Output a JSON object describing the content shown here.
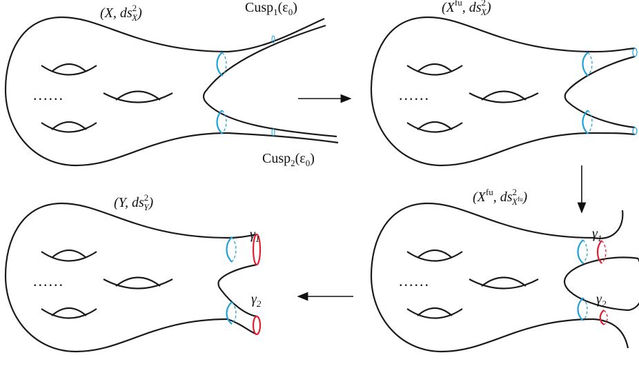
{
  "labels": [
    {
      "parts": [
        {
          "t": "(X, ds"
        },
        {
          "sup": "2"
        },
        {
          "sub": "X"
        },
        {
          "t": ")"
        }
      ]
    },
    {
      "parts": [
        {
          "t": "Cusp"
        },
        {
          "sub": "1"
        },
        {
          "t": "(ε"
        },
        {
          "sub": "0"
        },
        {
          "t": ")"
        }
      ]
    },
    {
      "parts": [
        {
          "t": "Cusp"
        },
        {
          "sub": "2"
        },
        {
          "t": "(ε"
        },
        {
          "sub": "0"
        },
        {
          "t": ")"
        }
      ]
    },
    {
      "parts": [
        {
          "t": "(X"
        },
        {
          "sup": "fu"
        },
        {
          "t": ", ds"
        },
        {
          "sup": "2"
        },
        {
          "sub": "X"
        },
        {
          "t": ")"
        }
      ]
    },
    {
      "parts": [
        {
          "t": "(X"
        },
        {
          "sup": "fu"
        },
        {
          "t": ", ds"
        },
        {
          "sup": "2"
        },
        {
          "sub": "X"
        },
        {
          "subsup": "fu"
        },
        {
          "t": ")"
        }
      ]
    },
    {
      "parts": [
        {
          "t": "(Y, ds"
        },
        {
          "sup": "2"
        },
        {
          "sub": "Y"
        },
        {
          "t": ")"
        }
      ]
    },
    {
      "parts": [
        {
          "t": "γ"
        },
        {
          "sub": "1"
        }
      ]
    },
    {
      "parts": [
        {
          "t": "γ"
        },
        {
          "sub": "2"
        }
      ]
    },
    {
      "parts": [
        {
          "t": "γ"
        },
        {
          "sub": "1"
        }
      ]
    },
    {
      "parts": [
        {
          "t": "γ"
        },
        {
          "sub": "2"
        }
      ]
    }
  ],
  "dots": "......"
}
